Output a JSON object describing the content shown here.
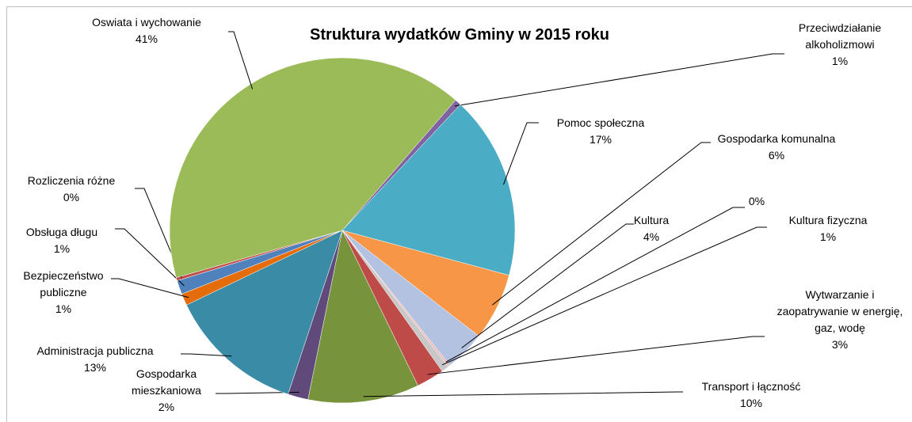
{
  "chart_data": {
    "type": "pie",
    "title": "Struktura wydatków Gminy w 2015 roku",
    "categories": [
      "Przeciwdziałanie alkoholizmowi",
      "Pomoc społeczna",
      "Gospodarka komunalna",
      "Kultura",
      null,
      "Kultura fizyczna",
      "Wytwarzanie i zaopatrywanie w energię, gaz, wodę",
      "Transport i łączność",
      "Gospodarka mieszkaniowa",
      "Administracja publiczna",
      "Bezpieczeństwo publiczne",
      "Obsługa długu",
      "Rozliczenia różne",
      "Oswiata i wychowanie"
    ],
    "values": [
      0.6,
      17.2,
      6.3,
      3.8,
      0.2,
      0.7,
      2.6,
      10.4,
      1.9,
      12.8,
      1.1,
      1.3,
      0.3,
      40.8
    ],
    "value_labels": [
      "1%",
      "17%",
      "6%",
      "4%",
      "0%",
      "1%",
      "3%",
      "10%",
      "2%",
      "13%",
      "1%",
      "1%",
      "0%",
      "41%"
    ],
    "colors": [
      "#8064a2",
      "#4bacc6",
      "#f79646",
      "#b3c2e0",
      "#f2b8b6",
      "#c8c8c8",
      "#be4b48",
      "#77933c",
      "#604a7b",
      "#3a8ba6",
      "#e46c0a",
      "#4f81bd",
      "#c0504d",
      "#9bbb59"
    ]
  }
}
